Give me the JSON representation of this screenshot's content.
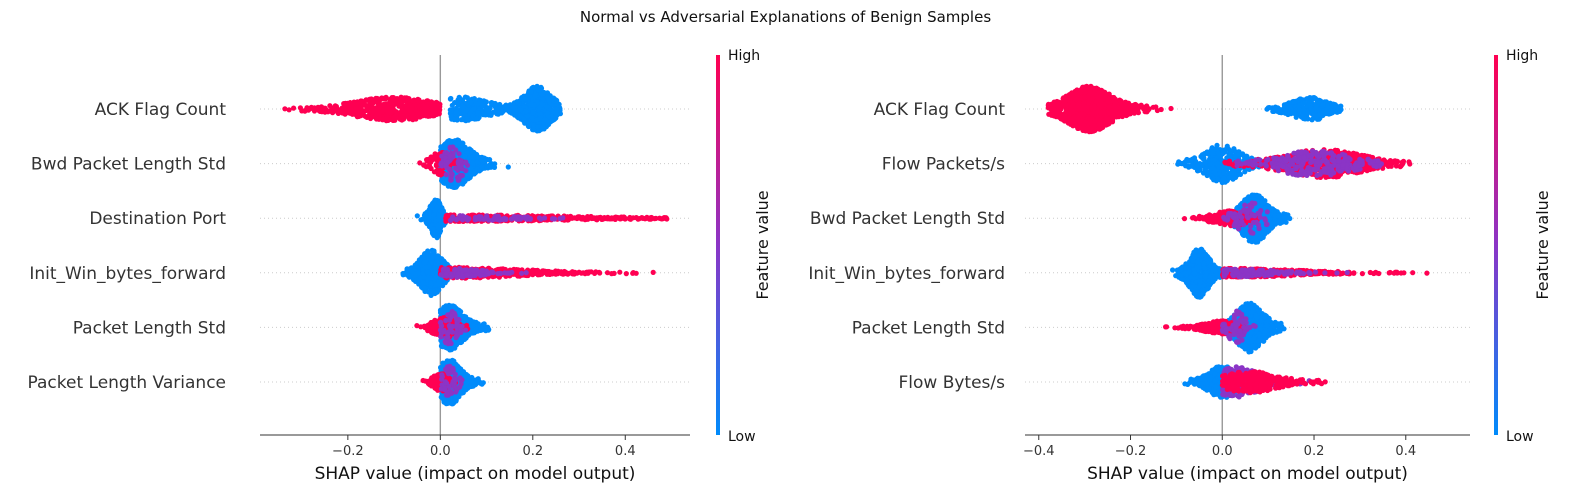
{
  "figure": {
    "title": "Normal vs Adversarial Explanations of Benign Samples"
  },
  "colors": {
    "high": "#ff0052",
    "low": "#008bfb",
    "mid": "#8b35c6",
    "axis": "#333333",
    "zero_line": "#999999"
  },
  "chart_data": [
    {
      "type": "scatter",
      "subtype": "shap-beeswarm",
      "xlabel": "SHAP value (impact on model output)",
      "xlim": [
        -0.39,
        0.54
      ],
      "xticks": [
        -0.2,
        0.0,
        0.2,
        0.4
      ],
      "xtick_labels": [
        "−0.2",
        "0.0",
        "0.2",
        "0.4"
      ],
      "colorbar": {
        "label": "Feature value",
        "high_label": "High",
        "low_label": "Low"
      },
      "features": [
        {
          "name": "ACK Flag Count",
          "clusters": [
            {
              "color": "high",
              "min": -0.35,
              "max": 0.0,
              "peak": -0.1,
              "spread": 0.09,
              "height": 0.22,
              "n": 520
            },
            {
              "color": "low",
              "min": 0.0,
              "max": 0.26,
              "peak": 0.21,
              "spread": 0.03,
              "height": 0.42,
              "n": 520
            },
            {
              "color": "low",
              "min": 0.02,
              "max": 0.16,
              "peak": 0.05,
              "spread": 0.06,
              "height": 0.22,
              "n": 180
            }
          ]
        },
        {
          "name": "Bwd Packet Length Std",
          "clusters": [
            {
              "color": "low",
              "min": 0.0,
              "max": 0.15,
              "peak": 0.03,
              "spread": 0.035,
              "height": 0.45,
              "n": 520
            },
            {
              "color": "high",
              "min": -0.05,
              "max": 0.06,
              "peak": 0.0,
              "spread": 0.02,
              "height": 0.22,
              "n": 90
            },
            {
              "color": "mid",
              "min": 0.0,
              "max": 0.06,
              "peak": 0.03,
              "spread": 0.02,
              "height": 0.35,
              "n": 60
            }
          ]
        },
        {
          "name": "Destination Port",
          "clusters": [
            {
              "color": "low",
              "min": -0.05,
              "max": 0.02,
              "peak": -0.01,
              "spread": 0.012,
              "height": 0.38,
              "n": 220
            },
            {
              "color": "high",
              "min": 0.01,
              "max": 0.49,
              "peak": 0.05,
              "spread": 0.25,
              "height": 0.06,
              "n": 380
            },
            {
              "color": "mid",
              "min": 0.02,
              "max": 0.3,
              "peak": 0.06,
              "spread": 0.12,
              "height": 0.05,
              "n": 70
            }
          ]
        },
        {
          "name": "Init_Win_bytes_forward",
          "clusters": [
            {
              "color": "low",
              "min": -0.1,
              "max": 0.02,
              "peak": -0.02,
              "spread": 0.025,
              "height": 0.42,
              "n": 380
            },
            {
              "color": "high",
              "min": 0.0,
              "max": 0.49,
              "peak": 0.03,
              "spread": 0.15,
              "height": 0.1,
              "n": 360
            },
            {
              "color": "mid",
              "min": 0.0,
              "max": 0.2,
              "peak": 0.03,
              "spread": 0.06,
              "height": 0.08,
              "n": 90
            }
          ]
        },
        {
          "name": "Packet Length Std",
          "clusters": [
            {
              "color": "low",
              "min": 0.0,
              "max": 0.12,
              "peak": 0.02,
              "spread": 0.03,
              "height": 0.42,
              "n": 460
            },
            {
              "color": "high",
              "min": -0.07,
              "max": 0.06,
              "peak": 0.01,
              "spread": 0.025,
              "height": 0.2,
              "n": 140
            },
            {
              "color": "mid",
              "min": 0.0,
              "max": 0.06,
              "peak": 0.02,
              "spread": 0.02,
              "height": 0.32,
              "n": 60
            }
          ]
        },
        {
          "name": "Packet Length Variance",
          "clusters": [
            {
              "color": "low",
              "min": 0.0,
              "max": 0.1,
              "peak": 0.02,
              "spread": 0.025,
              "height": 0.42,
              "n": 400
            },
            {
              "color": "high",
              "min": -0.05,
              "max": 0.04,
              "peak": 0.0,
              "spread": 0.015,
              "height": 0.18,
              "n": 110
            },
            {
              "color": "mid",
              "min": 0.0,
              "max": 0.05,
              "peak": 0.02,
              "spread": 0.015,
              "height": 0.3,
              "n": 50
            }
          ]
        }
      ]
    },
    {
      "type": "scatter",
      "subtype": "shap-beeswarm",
      "xlabel": "SHAP value (impact on model output)",
      "xlim": [
        -0.43,
        0.54
      ],
      "xticks": [
        -0.4,
        -0.2,
        0.0,
        0.2,
        0.4
      ],
      "xtick_labels": [
        "−0.4",
        "−0.2",
        "0.0",
        "0.2",
        "0.4"
      ],
      "colorbar": {
        "label": "Feature value",
        "high_label": "High",
        "low_label": "Low"
      },
      "features": [
        {
          "name": "ACK Flag Count",
          "clusters": [
            {
              "color": "high",
              "min": -0.38,
              "max": -0.05,
              "peak": -0.29,
              "spread": 0.05,
              "height": 0.42,
              "n": 900
            },
            {
              "color": "low",
              "min": 0.03,
              "max": 0.26,
              "peak": 0.19,
              "spread": 0.04,
              "height": 0.22,
              "n": 260
            }
          ]
        },
        {
          "name": "Flow Packets/s",
          "clusters": [
            {
              "color": "low",
              "min": -0.15,
              "max": 0.12,
              "peak": 0.0,
              "spread": 0.04,
              "height": 0.35,
              "n": 340
            },
            {
              "color": "high",
              "min": 0.0,
              "max": 0.42,
              "peak": 0.22,
              "spread": 0.09,
              "height": 0.26,
              "n": 520
            },
            {
              "color": "mid",
              "min": 0.02,
              "max": 0.35,
              "peak": 0.2,
              "spread": 0.08,
              "height": 0.24,
              "n": 260
            }
          ]
        },
        {
          "name": "Bwd Packet Length Std",
          "clusters": [
            {
              "color": "low",
              "min": 0.0,
              "max": 0.16,
              "peak": 0.07,
              "spread": 0.03,
              "height": 0.45,
              "n": 520
            },
            {
              "color": "high",
              "min": -0.12,
              "max": 0.08,
              "peak": 0.02,
              "spread": 0.04,
              "height": 0.14,
              "n": 210
            },
            {
              "color": "mid",
              "min": 0.0,
              "max": 0.1,
              "peak": 0.06,
              "spread": 0.03,
              "height": 0.3,
              "n": 60
            }
          ]
        },
        {
          "name": "Init_Win_bytes_forward",
          "clusters": [
            {
              "color": "low",
              "min": -0.11,
              "max": 0.0,
              "peak": -0.05,
              "spread": 0.022,
              "height": 0.45,
              "n": 440
            },
            {
              "color": "high",
              "min": 0.0,
              "max": 0.5,
              "peak": 0.03,
              "spread": 0.14,
              "height": 0.08,
              "n": 380
            },
            {
              "color": "mid",
              "min": 0.0,
              "max": 0.3,
              "peak": 0.04,
              "spread": 0.08,
              "height": 0.07,
              "n": 120
            }
          ]
        },
        {
          "name": "Packet Length Std",
          "clusters": [
            {
              "color": "low",
              "min": 0.0,
              "max": 0.14,
              "peak": 0.06,
              "spread": 0.03,
              "height": 0.45,
              "n": 480
            },
            {
              "color": "high",
              "min": -0.19,
              "max": 0.05,
              "peak": 0.0,
              "spread": 0.04,
              "height": 0.12,
              "n": 230
            },
            {
              "color": "mid",
              "min": 0.0,
              "max": 0.08,
              "peak": 0.03,
              "spread": 0.02,
              "height": 0.3,
              "n": 60
            }
          ]
        },
        {
          "name": "Flow Bytes/s",
          "clusters": [
            {
              "color": "low",
              "min": -0.09,
              "max": 0.12,
              "peak": 0.0,
              "spread": 0.03,
              "height": 0.3,
              "n": 380
            },
            {
              "color": "mid",
              "min": 0.0,
              "max": 0.2,
              "peak": 0.03,
              "spread": 0.05,
              "height": 0.28,
              "n": 260
            },
            {
              "color": "high",
              "min": 0.0,
              "max": 0.25,
              "peak": 0.06,
              "spread": 0.06,
              "height": 0.2,
              "n": 300
            }
          ]
        }
      ]
    }
  ]
}
